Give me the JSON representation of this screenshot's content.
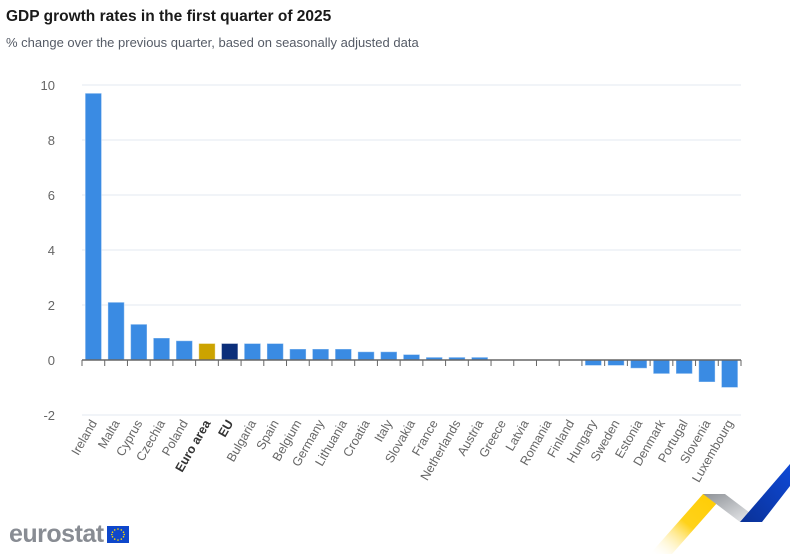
{
  "header": {
    "title": "GDP growth rates in the first quarter of 2025",
    "subtitle": "% change over the previous quarter, based on seasonally adjusted data"
  },
  "branding": {
    "logo_text": "eurostat",
    "flag_icon": "eu-flag-icon"
  },
  "colors": {
    "country": "#3a8be3",
    "euro_area": "#cca300",
    "eu": "#0b2e7a",
    "grid": "#e3e8f0",
    "axis": "#666666"
  },
  "chart_data": {
    "type": "bar",
    "title": "GDP growth rates in the first quarter of 2025",
    "subtitle": "% change over the previous quarter, based on seasonally adjusted data",
    "xlabel": "",
    "ylabel": "",
    "ylim": [
      -2,
      10
    ],
    "yticks": [
      10,
      8,
      6,
      4,
      2,
      0,
      -2
    ],
    "grid": true,
    "legend": "none",
    "categories": [
      "Ireland",
      "Malta",
      "Cyprus",
      "Czechia",
      "Poland",
      "Euro area",
      "EU",
      "Bulgaria",
      "Spain",
      "Belgium",
      "Germany",
      "Lithuania",
      "Croatia",
      "Italy",
      "Slovakia",
      "France",
      "Netherlands",
      "Austria",
      "Greece",
      "Latvia",
      "Romania",
      "Finland",
      "Hungary",
      "Sweden",
      "Estonia",
      "Denmark",
      "Portugal",
      "Slovenia",
      "Luxembourg"
    ],
    "values": [
      9.7,
      2.1,
      1.3,
      0.8,
      0.7,
      0.6,
      0.6,
      0.6,
      0.6,
      0.4,
      0.4,
      0.4,
      0.3,
      0.3,
      0.2,
      0.1,
      0.1,
      0.1,
      0.0,
      0.0,
      0.0,
      0.0,
      -0.2,
      -0.2,
      -0.3,
      -0.5,
      -0.5,
      -0.8,
      -1.0
    ],
    "highlight": {
      "Euro area": "euro_area",
      "EU": "eu"
    },
    "bold_labels": [
      "Euro area",
      "EU"
    ]
  }
}
